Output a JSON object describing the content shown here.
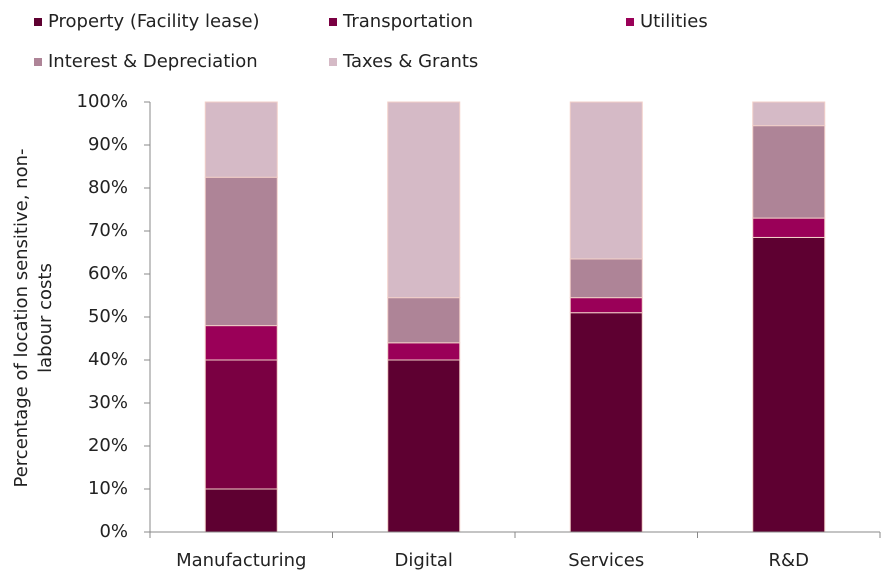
{
  "chart_data": {
    "type": "stacked_bar",
    "ylabel": [
      "Percentage of location sensitive, non-",
      "labour costs"
    ],
    "categories": [
      "Manufacturing",
      "Digital",
      "Services",
      "R&D"
    ],
    "series": [
      {
        "name": "Property (Facility lease)",
        "color": "#5e0031",
        "values": [
          10,
          40,
          51,
          68.5
        ]
      },
      {
        "name": "Transportation",
        "color": "#7a0042",
        "values": [
          30,
          0,
          0,
          0
        ]
      },
      {
        "name": "Utilities",
        "color": "#9a0058",
        "values": [
          8,
          4,
          3.5,
          4.5
        ]
      },
      {
        "name": "Interest & Depreciation",
        "color": "#ae8497",
        "values": [
          34.5,
          10.5,
          9,
          21.5
        ]
      },
      {
        "name": "Taxes & Grants",
        "color": "#d5bac6",
        "values": [
          17.5,
          45.5,
          36.5,
          5.5
        ]
      }
    ],
    "ylim": [
      0,
      100
    ],
    "yticks": [
      {
        "value": 0,
        "label": "0%"
      },
      {
        "value": 10,
        "label": "10%"
      },
      {
        "value": 20,
        "label": "20%"
      },
      {
        "value": 30,
        "label": "30%"
      },
      {
        "value": 40,
        "label": "40%"
      },
      {
        "value": 50,
        "label": "50%"
      },
      {
        "value": 60,
        "label": "60%"
      },
      {
        "value": 70,
        "label": "70%"
      },
      {
        "value": 80,
        "label": "80%"
      },
      {
        "value": 90,
        "label": "90%"
      },
      {
        "value": 100,
        "label": "100%"
      }
    ],
    "legend": "top"
  }
}
